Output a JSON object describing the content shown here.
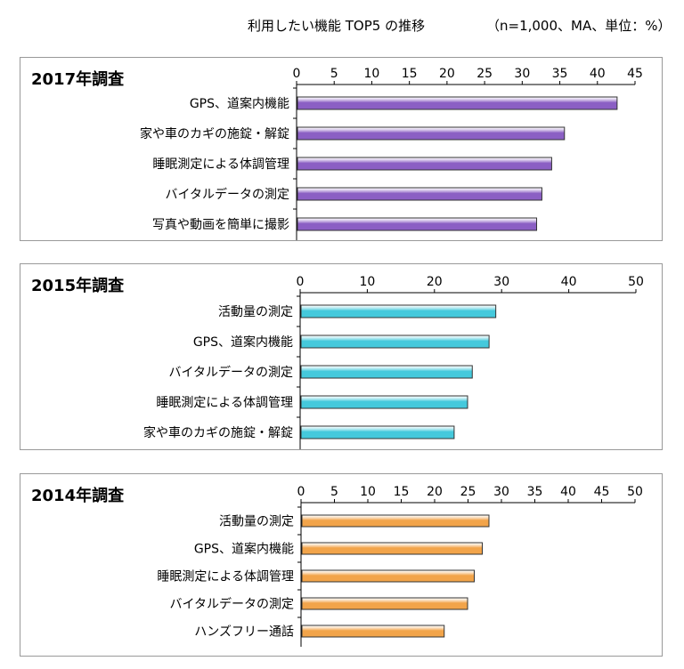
{
  "header": {
    "title": "利用したい機能 TOP5 の推移",
    "note": "（n=1,000、MA、単位：%）"
  },
  "colors": {
    "purple": "#8b5fc4",
    "cyan": "#45c9dc",
    "orange": "#f2a44a"
  },
  "chart_data": [
    {
      "type": "bar",
      "orientation": "horizontal",
      "title": "2017年調査",
      "categories": [
        "GPS、道案内機能",
        "家や車のカギの施錠・解錠",
        "睡眠測定による体調管理",
        "バイタルデータの測定",
        "写真や動画を簡単に撮影"
      ],
      "values": [
        42.5,
        35.5,
        33.8,
        32.5,
        31.8
      ],
      "xlim": [
        0,
        45
      ],
      "ticks": [
        "0",
        "5",
        "10",
        "15",
        "20",
        "25",
        "30",
        "35",
        "40",
        "45"
      ],
      "color": "#8b5fc4"
    },
    {
      "type": "bar",
      "orientation": "horizontal",
      "title": "2015年調査",
      "categories": [
        "活動量の測定",
        "GPS、道案内機能",
        "バイタルデータの測定",
        "睡眠測定による体調管理",
        "家や車のカギの施錠・解錠"
      ],
      "values": [
        29.0,
        28.0,
        25.5,
        24.8,
        22.8
      ],
      "xlim": [
        0,
        50
      ],
      "ticks": [
        "0",
        "10",
        "20",
        "30",
        "40",
        "50"
      ],
      "color": "#45c9dc"
    },
    {
      "type": "bar",
      "orientation": "horizontal",
      "title": "2014年調査",
      "categories": [
        "活動量の測定",
        "GPS、道案内機能",
        "睡眠測定による体調管理",
        "バイタルデータの測定",
        "ハンズフリー通話"
      ],
      "values": [
        28.0,
        27.0,
        25.8,
        24.8,
        21.3
      ],
      "xlim": [
        0,
        50
      ],
      "ticks": [
        "0",
        "5",
        "10",
        "15",
        "20",
        "25",
        "30",
        "35",
        "40",
        "45",
        "50"
      ],
      "color": "#f2a44a"
    }
  ]
}
